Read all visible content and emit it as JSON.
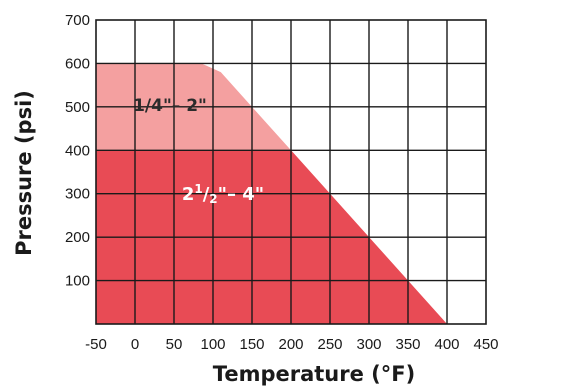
{
  "chart_data": {
    "type": "area",
    "xlabel": "Temperature (°F)",
    "ylabel": "Pressure (psi)",
    "xlim": [
      -50,
      450
    ],
    "ylim": [
      0,
      700
    ],
    "x_ticks": [
      "-50",
      "0",
      "50",
      "100",
      "150",
      "200",
      "250",
      "300",
      "350",
      "400",
      "450"
    ],
    "y_ticks": [
      "100",
      "200",
      "300",
      "400",
      "500",
      "600",
      "700"
    ],
    "grid": true,
    "series": [
      {
        "name": "1/4\"– 2\"",
        "color": "#f4a0a0",
        "points": [
          [
            -50,
            600
          ],
          [
            85,
            600
          ],
          [
            110,
            580
          ],
          [
            200,
            400
          ],
          [
            400,
            0
          ]
        ]
      },
      {
        "name": "2½\"– 4\"",
        "color": "#e84b55",
        "points": [
          [
            -50,
            400
          ],
          [
            200,
            400
          ],
          [
            400,
            0
          ]
        ]
      }
    ],
    "annotations": [
      {
        "series": 0,
        "text_main": "1/4\"– 2\""
      },
      {
        "series": 1,
        "text_whole": "2",
        "text_num": "1",
        "text_slash": "/",
        "text_den": "2",
        "text_rest": "\"– 4\""
      }
    ]
  }
}
